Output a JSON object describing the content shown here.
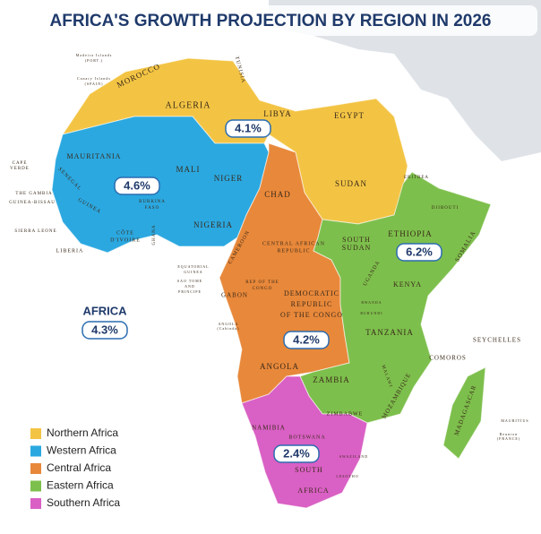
{
  "header": {
    "title": "AFRICA'S GROWTH PROJECTION BY REGION IN 2026"
  },
  "regions": [
    {
      "name": "Northern Africa",
      "color": "#f3c444",
      "growth": "4.1%"
    },
    {
      "name": "Western Africa",
      "color": "#2ba8e0",
      "growth": "4.6%"
    },
    {
      "name": "Central Africa",
      "color": "#e8883a",
      "growth": "4.2%"
    },
    {
      "name": "Eastern Africa",
      "color": "#7dbf4c",
      "growth": "6.2%"
    },
    {
      "name": "Southern Africa",
      "color": "#d960c4",
      "growth": "2.4%"
    }
  ],
  "africa": {
    "label": "AFRICA",
    "growth": "4.3%"
  },
  "labels": [
    [
      "MOROCCO"
    ],
    [
      "ALGERIA"
    ],
    [
      "TUNISIA"
    ],
    [
      "LIBYA"
    ],
    [
      "EGYPT"
    ],
    [
      "MAURITANIA"
    ],
    [
      "MALI"
    ],
    [
      "NIGER"
    ],
    [
      "CHAD"
    ],
    [
      "SUDAN"
    ],
    [
      "ERITREA"
    ],
    [
      "DJIBOUTI"
    ],
    [
      "SENEGAL"
    ],
    [
      "THE GAMBIA"
    ],
    [
      "GUINEA-BISSAU"
    ],
    [
      "GUINEA"
    ],
    [
      "SIERRA LEONE"
    ],
    [
      "LIBERIA"
    ],
    [
      "CÔTE",
      "D'IVOIRE"
    ],
    [
      "BURKINA",
      "FASO"
    ],
    [
      "GHANA"
    ],
    [
      "NIGERIA"
    ],
    [
      "CAMEROON"
    ],
    [
      "CENTRAL AFRICAN",
      "REPUBLIC"
    ],
    [
      "SOUTH",
      "SUDAN"
    ],
    [
      "ETHIOPIA"
    ],
    [
      "SOMALIA"
    ],
    [
      "UGANDA"
    ],
    [
      "KENYA"
    ],
    [
      "EQUATORIAL",
      "GUINEA"
    ],
    [
      "SAO TOME",
      "AND",
      "PRINCIPE"
    ],
    [
      "GABON"
    ],
    [
      "REP OF THE",
      "CONGO"
    ],
    [
      "DEMOCRATIC",
      "REPUBLIC",
      "OF THE CONGO"
    ],
    [
      "RWANDA"
    ],
    [
      "BURUNDI"
    ],
    [
      "TANZANIA"
    ],
    [
      "ANGOLA"
    ],
    [
      "ANGOLA",
      "(Cabinda)"
    ],
    [
      "ZAMBIA"
    ],
    [
      "MALAWI"
    ],
    [
      "MOZAMBIQUE"
    ],
    [
      "ZIMBABWE"
    ],
    [
      "NAMIBIA"
    ],
    [
      "BOTSWANA"
    ],
    [
      "SOUTH"
    ],
    [
      "AFRICA"
    ],
    [
      "SWAZILAND"
    ],
    [
      "LESOTHO"
    ],
    [
      "MADAGASCAR"
    ],
    [
      "SEYCHELLES"
    ],
    [
      "COMOROS"
    ],
    [
      "MAURITIUS"
    ],
    [
      "Reunion",
      "(FRANCE)"
    ],
    [
      "CAPE",
      "VERDE"
    ],
    [
      "Madeira Islands",
      "(PORT.)"
    ],
    [
      "Canary Islands",
      "(SPAIN)"
    ]
  ]
}
